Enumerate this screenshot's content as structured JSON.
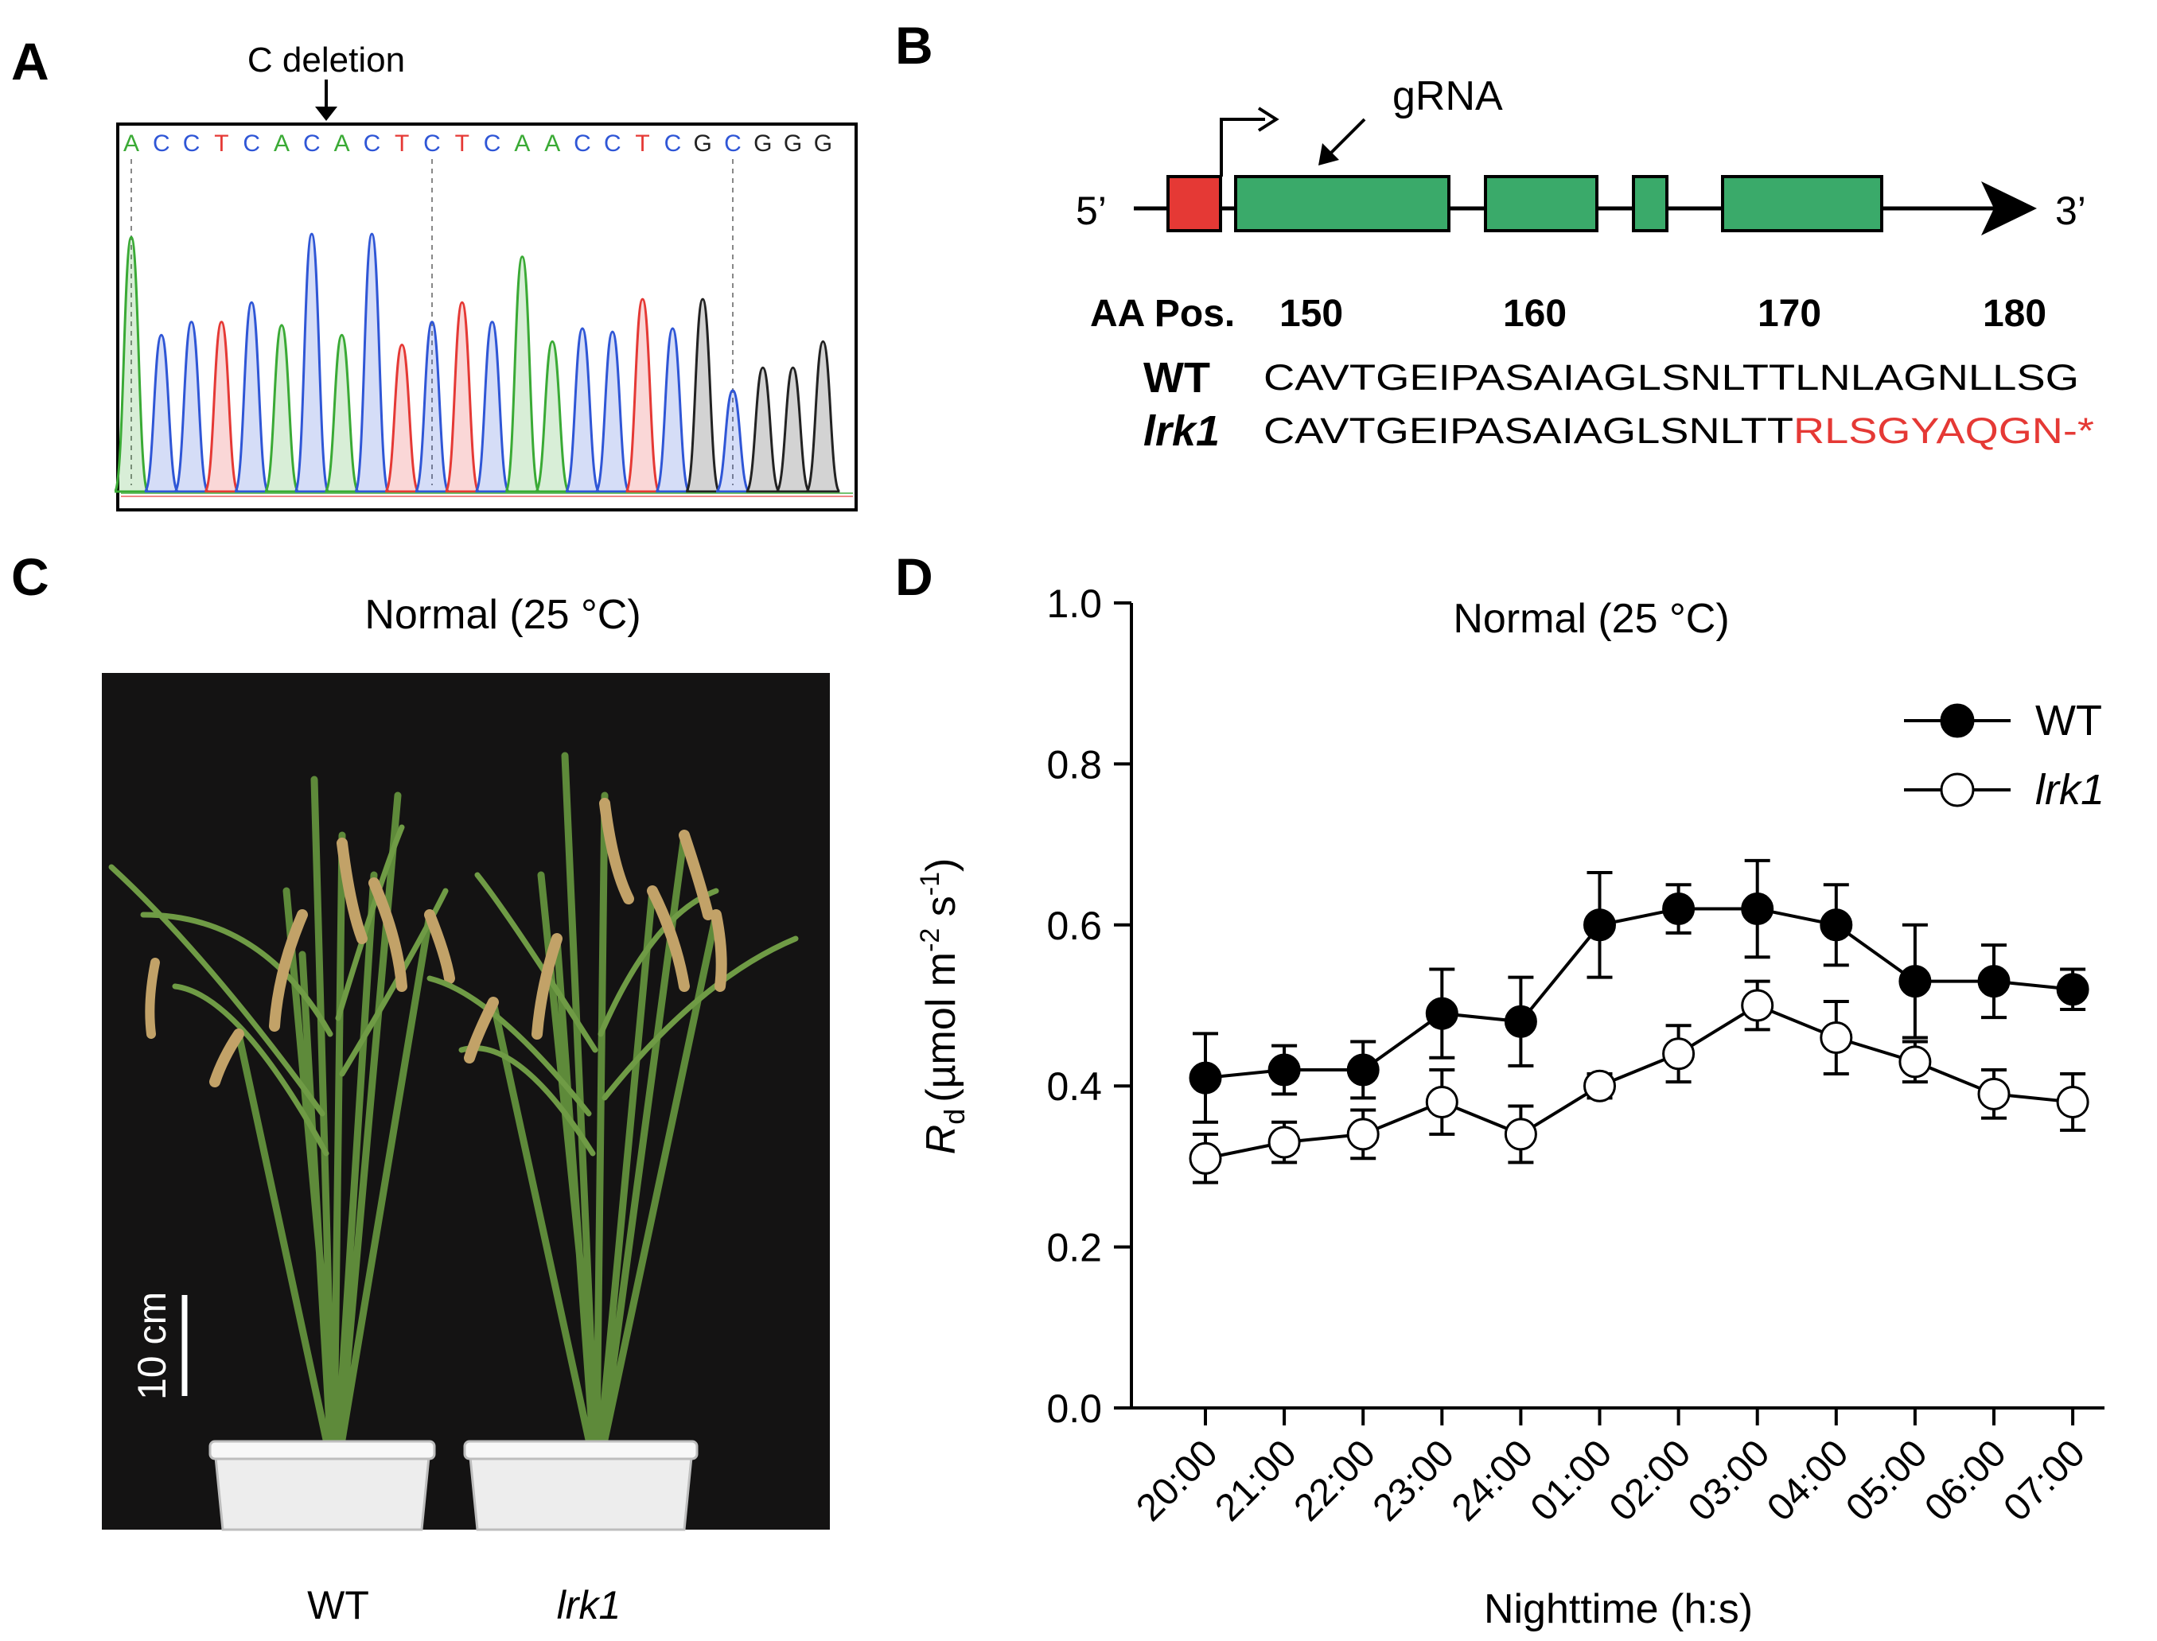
{
  "panels": {
    "a": {
      "label": "A",
      "annotation": "C deletion",
      "bases": [
        "A",
        "C",
        "C",
        "T",
        "C",
        "A",
        "C",
        "A",
        "C",
        "T",
        "C",
        "T",
        "C",
        "A",
        "A",
        "C",
        "C",
        "T",
        "C",
        "G",
        "C",
        "G",
        "G",
        "G"
      ],
      "peak_heights": [
        0.78,
        0.48,
        0.52,
        0.52,
        0.58,
        0.51,
        0.79,
        0.48,
        0.79,
        0.45,
        0.52,
        0.58,
        0.52,
        0.72,
        0.46,
        0.5,
        0.49,
        0.59,
        0.5,
        0.59,
        0.31,
        0.38,
        0.38,
        0.46
      ],
      "base_colors": {
        "A": "#3aaa35",
        "C": "#2f56d6",
        "T": "#e53935",
        "G": "#222222"
      }
    },
    "b": {
      "label": "B",
      "five_prime": "5’",
      "three_prime": "3’",
      "grna": "gRNA",
      "aa_pos_label": "AA Pos.",
      "positions": [
        "150",
        "160",
        "170",
        "180"
      ],
      "wt_label": "WT",
      "wt_seq": "CAVTGEIPASAIAGLSNLTTLNLAGNLLSG",
      "mut_label": "lrk1",
      "mut_seq_common": "CAVTGEIPASAIAGLSNLTT",
      "mut_seq_changed": "RLSGYAQGN-*",
      "utr_color": "#e53935",
      "exon_color": "#3aaa6a"
    },
    "c": {
      "label": "C",
      "title": "Normal (25 °C)",
      "scale_label": "10 cm",
      "label_wt": "WT",
      "label_mut": "lrk1"
    }
  },
  "chart_data": {
    "type": "line",
    "panel_label": "D",
    "title": "Normal (25 °C)",
    "xlabel": "Nighttime (h:s)",
    "ylabel_var": "R",
    "ylabel_sub": "d",
    "ylabel_units": "(µmol m",
    "ylabel_exp1": "-2",
    "ylabel_mid": " s",
    "ylabel_exp2": "-1",
    "ylabel_close": ")",
    "ylim": [
      0,
      1.0
    ],
    "yticks": [
      "0.0",
      "0.2",
      "0.4",
      "0.6",
      "0.8",
      "1.0"
    ],
    "categories": [
      "20:00",
      "21:00",
      "22:00",
      "23:00",
      "24:00",
      "01:00",
      "02:00",
      "03:00",
      "04:00",
      "05:00",
      "06:00",
      "07:00"
    ],
    "series": [
      {
        "name": "WT",
        "marker": "filled",
        "values": [
          0.41,
          0.42,
          0.42,
          0.49,
          0.48,
          0.6,
          0.62,
          0.62,
          0.6,
          0.53,
          0.53,
          0.52
        ],
        "errors": [
          0.055,
          0.03,
          0.035,
          0.055,
          0.055,
          0.065,
          0.03,
          0.06,
          0.05,
          0.07,
          0.045,
          0.025
        ]
      },
      {
        "name": "lrk1",
        "marker": "open",
        "values": [
          0.31,
          0.33,
          0.34,
          0.38,
          0.34,
          0.4,
          0.44,
          0.5,
          0.46,
          0.43,
          0.39,
          0.38
        ],
        "errors": [
          0.03,
          0.025,
          0.03,
          0.04,
          0.035,
          0.015,
          0.035,
          0.03,
          0.045,
          0.025,
          0.03,
          0.035
        ]
      }
    ]
  }
}
